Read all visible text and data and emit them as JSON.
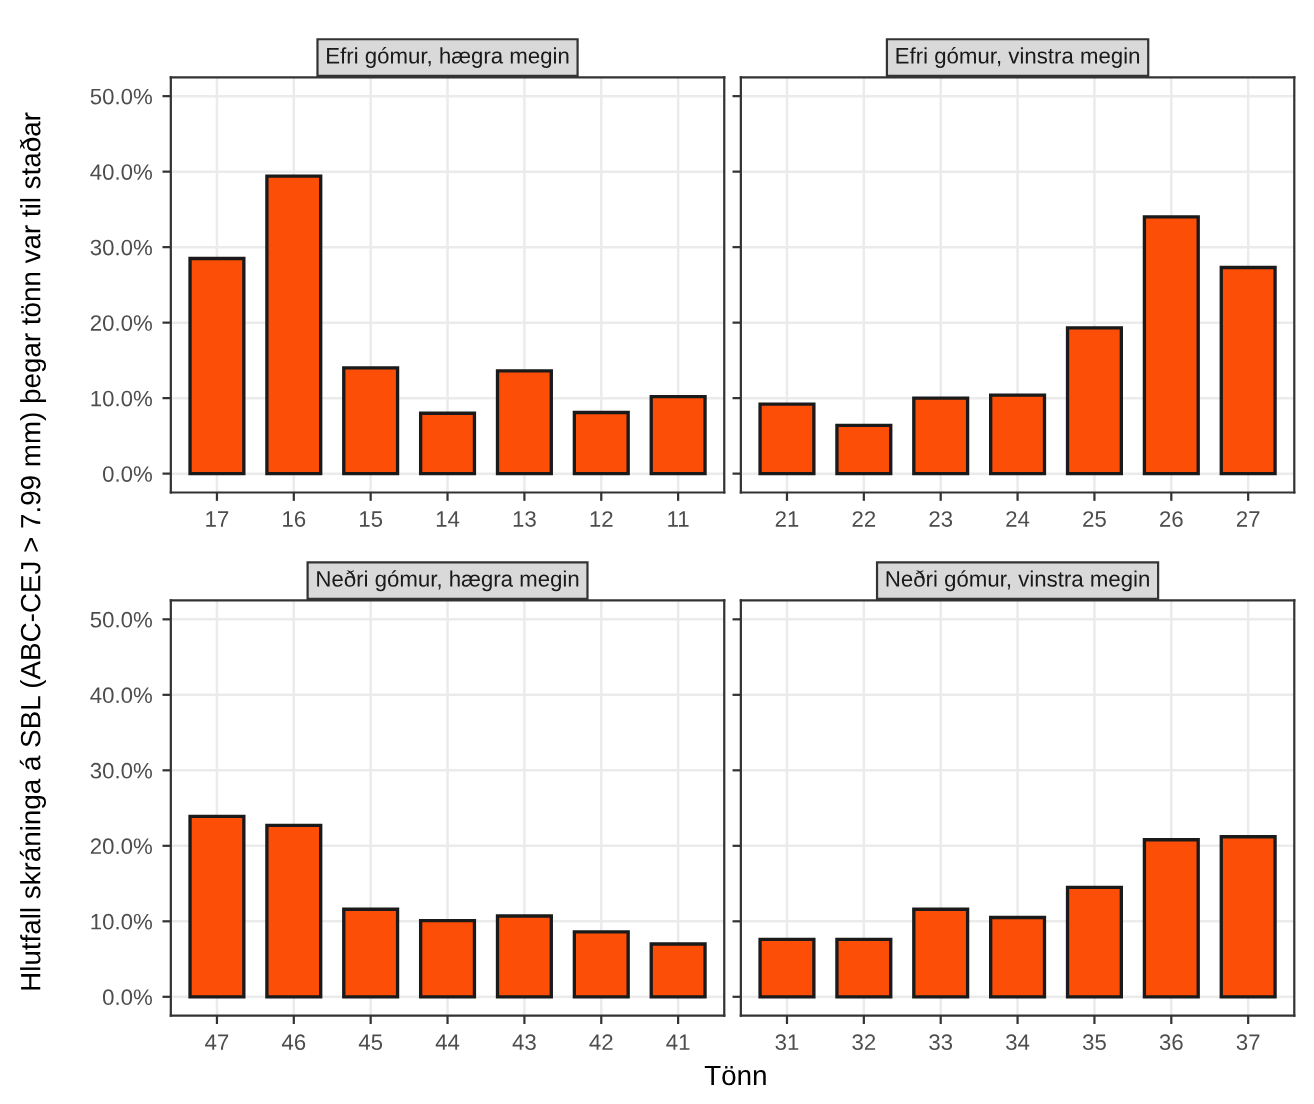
{
  "chart_data": [
    {
      "type": "bar",
      "title": "Efri gómur, hægra megin",
      "ylabel": "Hlutfall skráninga á SBL (ABC-CEJ > 7.99 mm) þegar tönn var til staðar",
      "categories": [
        "17",
        "16",
        "15",
        "14",
        "13",
        "12",
        "11"
      ],
      "values": [
        28.5,
        39.4,
        14.0,
        8.0,
        13.6,
        8.1,
        10.2
      ],
      "color": "#fc4e07",
      "ylim": [
        -2.5,
        52.5
      ],
      "yticks": [
        {
          "value": 0,
          "label": "0.0%"
        },
        {
          "value": 10,
          "label": "10.0%"
        },
        {
          "value": 20,
          "label": "20.0%"
        },
        {
          "value": 30,
          "label": "30.0%"
        },
        {
          "value": 40,
          "label": "40.0%"
        },
        {
          "value": 50,
          "label": "50.0%"
        }
      ],
      "grid": true
    },
    {
      "type": "bar",
      "title": "Efri gómur, vinstra megin",
      "categories": [
        "21",
        "22",
        "23",
        "24",
        "25",
        "26",
        "27"
      ],
      "values": [
        9.2,
        6.4,
        10.0,
        10.4,
        19.3,
        34.0,
        27.3
      ],
      "color": "#fc4e07",
      "ylim": [
        -2.5,
        52.5
      ],
      "yticks": [
        {
          "value": 0,
          "label": null
        },
        {
          "value": 10,
          "label": null
        },
        {
          "value": 20,
          "label": null
        },
        {
          "value": 30,
          "label": null
        },
        {
          "value": 40,
          "label": null
        },
        {
          "value": 50,
          "label": null
        }
      ],
      "grid": true,
      "tick_labels": "x"
    },
    {
      "type": "bar",
      "title": "Neðri gómur, hægra megin",
      "xlabel": "Tönn",
      "categories": [
        "47",
        "46",
        "45",
        "44",
        "43",
        "42",
        "41"
      ],
      "values": [
        23.9,
        22.7,
        11.6,
        10.1,
        10.7,
        8.6,
        7.0
      ],
      "color": "#fc4e07",
      "ylim": [
        -2.5,
        52.5
      ],
      "yticks": [
        {
          "value": 0,
          "label": "0.0%"
        },
        {
          "value": 10,
          "label": "10.0%"
        },
        {
          "value": 20,
          "label": "20.0%"
        },
        {
          "value": 30,
          "label": "30.0%"
        },
        {
          "value": 40,
          "label": "40.0%"
        },
        {
          "value": 50,
          "label": "50.0%"
        }
      ],
      "grid": true
    },
    {
      "type": "bar",
      "title": "Neðri gómur, vinstra megin",
      "categories": [
        "31",
        "32",
        "33",
        "34",
        "35",
        "36",
        "37"
      ],
      "values": [
        7.6,
        7.6,
        11.6,
        10.5,
        14.5,
        20.8,
        21.2
      ],
      "color": "#fc4e07",
      "ylim": [
        -2.5,
        52.5
      ],
      "yticks": [
        {
          "value": 0,
          "label": null
        },
        {
          "value": 10,
          "label": null
        },
        {
          "value": 20,
          "label": null
        },
        {
          "value": 30,
          "label": null
        },
        {
          "value": 40,
          "label": null
        },
        {
          "value": 50,
          "label": null
        }
      ],
      "grid": true,
      "tick_labels": "x"
    }
  ]
}
